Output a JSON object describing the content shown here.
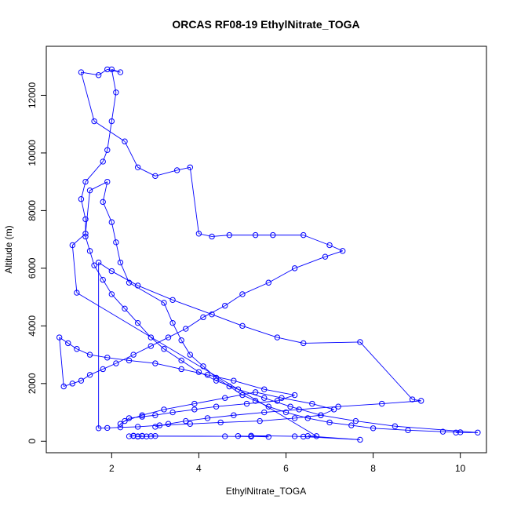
{
  "chart_data": {
    "type": "line",
    "title": "ORCAS RF08-19 EthylNitrate_TOGA",
    "xlabel": "EthylNitrate_TOGA",
    "ylabel": "Altitude (m)",
    "xlim": [
      0.5,
      10.6
    ],
    "ylim": [
      -400,
      13700
    ],
    "x_ticks": [
      2,
      4,
      6,
      8,
      10
    ],
    "y_ticks": [
      0,
      2000,
      4000,
      6000,
      8000,
      10000,
      12000
    ],
    "grid": false,
    "markers": "open-circle",
    "series_color": "#0000ff",
    "series": [
      {
        "x": [
          2.5,
          2.4,
          2.5,
          2.6,
          2.7,
          2.7,
          2.6,
          2.8,
          3.0,
          2.9,
          4.6,
          5.2,
          4.9,
          5.6,
          5.2,
          6.2,
          6.4,
          7.7,
          6.5,
          6.7,
          1.2,
          1.1,
          1.4,
          1.5,
          1.9,
          1.8,
          2.0,
          2.1,
          2.2,
          2.4,
          3.2,
          3.4,
          3.6,
          3.8,
          4.1,
          4.4,
          4.7,
          5.0,
          5.3,
          5.6,
          6.0,
          6.5,
          7.0,
          7.5,
          8.0,
          8.8,
          9.6,
          10.0,
          9.9,
          10.4,
          8.5,
          7.6,
          6.8,
          6.1,
          5.5,
          4.9,
          4.4,
          4.0,
          3.6,
          3.2,
          2.9,
          2.6,
          2.3,
          2.0,
          1.8,
          1.6,
          1.5,
          1.4,
          1.4,
          1.3,
          1.4,
          1.8,
          1.9,
          2.0,
          2.1,
          2.0,
          2.2,
          1.9,
          1.7,
          1.3,
          1.6,
          2.3,
          2.6,
          3.0,
          3.5,
          3.8,
          4.0,
          4.3,
          4.7,
          5.3,
          5.7,
          6.4,
          7.0,
          7.3,
          6.9,
          6.2,
          5.6,
          5.0,
          4.6,
          4.1,
          3.7,
          3.3,
          2.9,
          2.5,
          2.1,
          1.8,
          1.5,
          1.3,
          1.1,
          0.9,
          0.8,
          1.0,
          1.2,
          1.5,
          1.9,
          2.4,
          3.0,
          3.6,
          4.2,
          4.8,
          5.5,
          6.2,
          5.8,
          5.1,
          4.4,
          3.9,
          3.4,
          3.0,
          2.7,
          2.4,
          2.2,
          2.3,
          2.7,
          3.2,
          3.9,
          4.6,
          5.3,
          5.9,
          6.6,
          7.1,
          6.8,
          6.2,
          5.4,
          4.5,
          3.8,
          3.1,
          2.6,
          2.2,
          1.9,
          1.7,
          1.7,
          2.0,
          2.6,
          3.4,
          4.3,
          5.0,
          5.8,
          6.4,
          7.7,
          8.9,
          9.1,
          8.2,
          7.2,
          6.3,
          5.5,
          4.8,
          4.2,
          3.7,
          3.3,
          3.0
        ],
        "y": [
          180,
          170,
          190,
          160,
          175,
          185,
          170,
          165,
          180,
          175,
          170,
          160,
          180,
          150,
          190,
          170,
          160,
          50,
          180,
          175,
          5150,
          6800,
          7200,
          8700,
          9000,
          8300,
          7600,
          6900,
          6200,
          5500,
          4800,
          4100,
          3500,
          3000,
          2600,
          2200,
          1900,
          1600,
          1400,
          1200,
          1000,
          800,
          650,
          550,
          450,
          380,
          330,
          310,
          300,
          300,
          520,
          700,
          900,
          1200,
          1500,
          1800,
          2100,
          2400,
          2800,
          3200,
          3600,
          4100,
          4600,
          5100,
          5600,
          6100,
          6600,
          7100,
          7700,
          8400,
          9000,
          9700,
          10100,
          11100,
          12100,
          12900,
          12800,
          12900,
          12700,
          12800,
          11100,
          10400,
          9500,
          9200,
          9400,
          9500,
          7200,
          7100,
          7150,
          7150,
          7150,
          7150,
          6800,
          6600,
          6400,
          6000,
          5500,
          5100,
          4700,
          4300,
          3900,
          3600,
          3300,
          3000,
          2700,
          2500,
          2300,
          2100,
          2000,
          1900,
          3600,
          3400,
          3200,
          3000,
          2900,
          2800,
          2700,
          2500,
          2300,
          2100,
          1800,
          1600,
          1400,
          1300,
          1200,
          1100,
          1000,
          900,
          850,
          800,
          600,
          700,
          900,
          1100,
          1300,
          1500,
          1700,
          1500,
          1300,
          1100,
          900,
          800,
          700,
          650,
          600,
          550,
          500,
          480,
          460,
          450,
          6200,
          5900,
          5400,
          4900,
          4400,
          4000,
          3600,
          3400,
          3440,
          1450,
          1400,
          1300,
          1200,
          1100,
          1000,
          900,
          800,
          700,
          600,
          500
        ]
      }
    ]
  }
}
